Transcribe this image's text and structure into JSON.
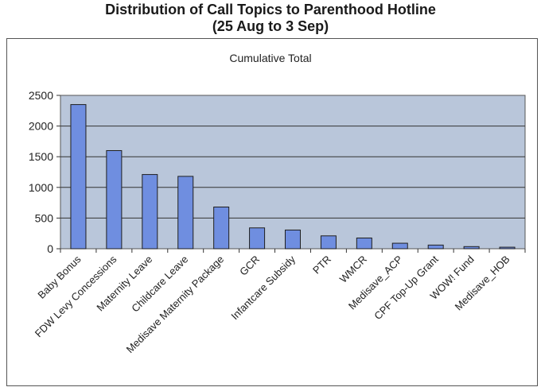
{
  "chart_data": {
    "type": "bar",
    "title": "Distribution of Call Topics to Parenthood Hotline",
    "subtitle": "(25 Aug to 3 Sep)",
    "series_label": "Cumulative Total",
    "categories": [
      "Baby Bonus",
      "FDW Levy Concessions",
      "Maternity Leave",
      "Childcare Leave",
      "Medisave Maternity Package",
      "GCR",
      "Infantcare Subsidy",
      "PTR",
      "WMCR",
      "Medisave_ACP",
      "CPF Top-Up Grant",
      "WOW! Fund",
      "Medisave_HOB"
    ],
    "values": [
      2350,
      1600,
      1210,
      1180,
      680,
      340,
      305,
      210,
      175,
      90,
      60,
      35,
      25
    ],
    "ylim": [
      0,
      2500
    ],
    "yticks": [
      0,
      500,
      1000,
      1500,
      2000,
      2500
    ],
    "grid": true,
    "legend": "none",
    "colors": {
      "bar": "#6f8ee0",
      "bar_edge": "#1f1f1f",
      "plot_bg": "#b9c6da"
    }
  }
}
